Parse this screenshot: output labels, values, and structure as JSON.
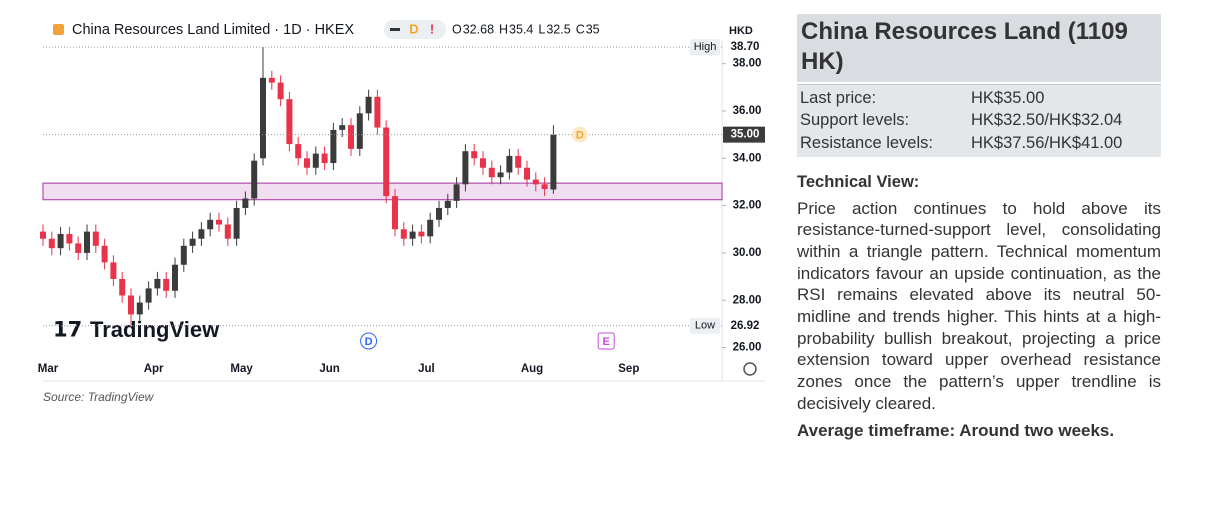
{
  "chart_data": {
    "type": "candlestick",
    "title": "China Resources Land Limited · 1D · HKEX",
    "header_badges": [
      "D",
      "!"
    ],
    "header_ohlc": [
      {
        "key": "O",
        "value": 32.68
      },
      {
        "key": "H",
        "value": 35.4
      },
      {
        "key": "L",
        "value": 32.5
      },
      {
        "key": "C",
        "value": 35
      }
    ],
    "currency": "HKD",
    "categories": [
      "Mar",
      null,
      null,
      null,
      null,
      null,
      null,
      null,
      null,
      null,
      null,
      null,
      "Apr",
      null,
      null,
      null,
      null,
      null,
      null,
      null,
      null,
      null,
      "May",
      null,
      null,
      null,
      null,
      null,
      null,
      null,
      null,
      null,
      "Jun",
      null,
      null,
      null,
      null,
      null,
      null,
      null,
      null,
      null,
      null,
      "Jul",
      null,
      null,
      null,
      null,
      null,
      null,
      null,
      null,
      null,
      null,
      null,
      "Aug",
      null,
      null,
      null,
      null,
      null,
      null,
      null,
      null,
      null,
      null,
      "Sep"
    ],
    "series": [
      {
        "name": "China Resources Land Limited",
        "up_color": "#3b3b3b",
        "down_color": "#e8334a",
        "open": [
          30.9,
          30.6,
          30.2,
          30.8,
          30.4,
          30.0,
          30.9,
          30.3,
          29.6,
          28.9,
          28.2,
          27.4,
          27.9,
          28.5,
          28.9,
          28.4,
          29.5,
          30.3,
          30.6,
          31.0,
          31.4,
          31.2,
          30.6,
          31.9,
          32.3,
          34.0,
          37.4,
          37.2,
          36.5,
          34.6,
          34.0,
          33.6,
          34.2,
          33.8,
          35.2,
          35.4,
          34.4,
          35.9,
          36.6,
          35.3,
          32.4,
          31.0,
          30.6,
          30.9,
          30.7,
          31.4,
          31.9,
          32.2,
          32.9,
          34.3,
          34.0,
          33.6,
          33.2,
          33.4,
          34.1,
          33.6,
          33.1,
          32.9,
          32.68,
          null,
          null,
          null,
          null,
          null,
          null,
          null,
          null
        ],
        "high": [
          31.2,
          30.9,
          31.1,
          31.1,
          30.7,
          31.2,
          31.2,
          30.6,
          29.9,
          29.2,
          28.5,
          28.2,
          28.8,
          29.2,
          29.2,
          29.8,
          30.6,
          30.9,
          31.3,
          31.7,
          31.7,
          31.5,
          32.2,
          32.6,
          34.2,
          38.7,
          37.7,
          37.5,
          36.8,
          34.9,
          34.3,
          34.5,
          34.5,
          35.5,
          35.7,
          35.7,
          36.2,
          36.9,
          36.9,
          35.6,
          32.7,
          31.3,
          31.2,
          31.2,
          31.7,
          32.2,
          32.5,
          33.2,
          34.6,
          34.6,
          34.3,
          33.9,
          33.7,
          34.4,
          34.4,
          33.9,
          33.4,
          33.2,
          35.4,
          null,
          null,
          null,
          null,
          null,
          null,
          null,
          null
        ],
        "low": [
          30.3,
          29.9,
          29.9,
          30.1,
          29.7,
          29.7,
          30.0,
          29.3,
          28.6,
          27.9,
          26.92,
          27.1,
          27.6,
          28.2,
          28.1,
          28.1,
          29.2,
          30.0,
          30.3,
          30.7,
          30.9,
          30.3,
          30.3,
          31.6,
          32.0,
          33.7,
          36.9,
          36.2,
          34.3,
          33.7,
          33.3,
          33.3,
          33.5,
          33.5,
          34.9,
          34.1,
          34.1,
          35.6,
          35.0,
          32.1,
          30.7,
          30.3,
          30.3,
          30.4,
          30.4,
          31.1,
          31.6,
          31.9,
          32.6,
          33.7,
          33.3,
          32.9,
          32.9,
          33.1,
          33.3,
          32.8,
          32.6,
          32.4,
          32.5,
          null,
          null,
          null,
          null,
          null,
          null,
          null,
          null
        ],
        "close": [
          30.6,
          30.2,
          30.8,
          30.4,
          30.0,
          30.9,
          30.3,
          29.6,
          28.9,
          28.2,
          27.4,
          27.9,
          28.5,
          28.9,
          28.4,
          29.5,
          30.3,
          30.6,
          31.0,
          31.4,
          31.2,
          30.6,
          31.9,
          32.3,
          33.9,
          37.4,
          37.2,
          36.5,
          34.6,
          34.0,
          33.6,
          34.2,
          33.8,
          35.2,
          35.4,
          34.4,
          35.9,
          36.6,
          35.3,
          32.4,
          31.0,
          30.6,
          30.9,
          30.7,
          31.4,
          31.9,
          32.2,
          32.9,
          34.3,
          34.0,
          33.6,
          33.2,
          33.4,
          34.1,
          33.6,
          33.1,
          32.9,
          32.7,
          35.0,
          null,
          null,
          null,
          null,
          null,
          null,
          null,
          null
        ]
      }
    ],
    "ylim": [
      25.6,
      39
    ],
    "yticks": [
      {
        "value": 26,
        "label": "26.00"
      },
      {
        "value": 28,
        "label": "28.00"
      },
      {
        "value": 30,
        "label": "30.00"
      },
      {
        "value": 32,
        "label": "32.00"
      },
      {
        "value": 34,
        "label": "34.00"
      },
      {
        "value": 36,
        "label": "36.00"
      },
      {
        "value": 38,
        "label": "38.00"
      }
    ],
    "price_labels": [
      {
        "name": "High",
        "value": 38.7,
        "label": "38.70"
      },
      {
        "value": 35,
        "label": "35.00"
      },
      {
        "name": "Low",
        "value": 26.92
      }
    ],
    "support_band": [
      32.25,
      32.95
    ],
    "band_color": "#b04fb0",
    "events": [
      {
        "at": 37,
        "label": "D",
        "color": "#2962ff"
      },
      {
        "at": 64,
        "label": "E",
        "color": "#c34fd6"
      },
      {
        "at": 61,
        "label": "D",
        "color": "#f5a623"
      }
    ],
    "watermark": "TradingView",
    "source": "Source: TradingView"
  },
  "panel": {
    "title": "China Resources Land (1109 HK)",
    "rows": [
      [
        "Last price:",
        "HK$35.00"
      ],
      [
        "Support levels:",
        "HK$32.50/HK$32.04"
      ],
      [
        "Resistance levels:",
        "HK$37.56/HK$41.00"
      ]
    ],
    "section_title": "Technical View:",
    "body": "Price action continues to hold above its resistance-turned-support level, consolidating within a triangle pattern. Technical momentum indicators favour an upside continuation, as the RSI remains elevated above its neutral 50-midline and trends higher. This hints at a high-probability bullish breakout, projecting a price extension toward upper overhead resistance zones once the pattern’s upper trendline is decisively cleared.",
    "footer": "Average timeframe: Around two weeks."
  }
}
